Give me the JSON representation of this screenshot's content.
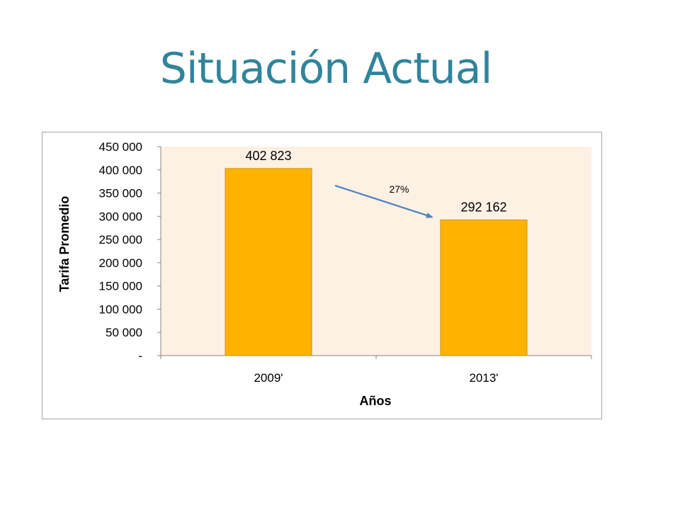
{
  "slide": {
    "title": "Situación Actual"
  },
  "colors": {
    "title": "#31849b",
    "bar_fill": "#ffb300",
    "bar_stroke": "#c8900a",
    "plot_bg": "#fdf1e4",
    "arrow": "#4f81bd"
  },
  "chart_data": {
    "type": "bar",
    "categories": [
      "2009'",
      "2013'"
    ],
    "values": [
      402823,
      292162
    ],
    "data_labels": [
      "402 823",
      "292 162"
    ],
    "xlabel": "Años",
    "ylabel": "Tarifa Promedio",
    "ylim": [
      0,
      450000
    ],
    "yticks": [
      {
        "value": 0,
        "label": "-"
      },
      {
        "value": 50000,
        "label": "50 000"
      },
      {
        "value": 100000,
        "label": "100 000"
      },
      {
        "value": 150000,
        "label": "150 000"
      },
      {
        "value": 200000,
        "label": "200 000"
      },
      {
        "value": 250000,
        "label": "250 000"
      },
      {
        "value": 300000,
        "label": "300 000"
      },
      {
        "value": 350000,
        "label": "350 000"
      },
      {
        "value": 400000,
        "label": "400 000"
      },
      {
        "value": 450000,
        "label": "450 000"
      }
    ],
    "grid": false,
    "legend": "none",
    "annotation": {
      "text": "27%",
      "from_category": "2009'",
      "to_category": "2013'"
    }
  }
}
